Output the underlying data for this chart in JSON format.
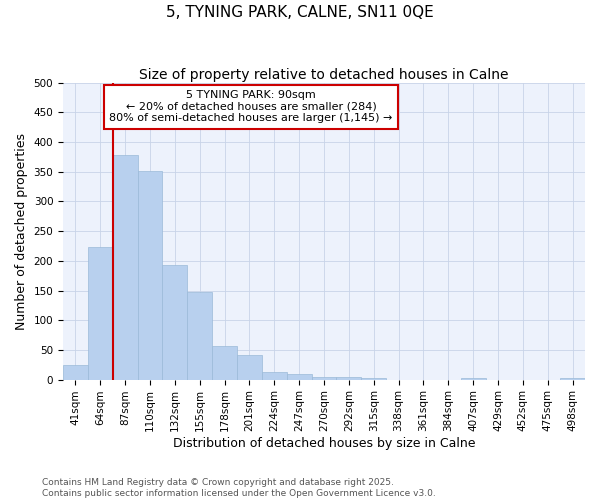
{
  "title": "5, TYNING PARK, CALNE, SN11 0QE",
  "subtitle": "Size of property relative to detached houses in Calne",
  "xlabel": "Distribution of detached houses by size in Calne",
  "ylabel": "Number of detached properties",
  "categories": [
    "41sqm",
    "64sqm",
    "87sqm",
    "110sqm",
    "132sqm",
    "155sqm",
    "178sqm",
    "201sqm",
    "224sqm",
    "247sqm",
    "270sqm",
    "292sqm",
    "315sqm",
    "338sqm",
    "361sqm",
    "384sqm",
    "407sqm",
    "429sqm",
    "452sqm",
    "475sqm",
    "498sqm"
  ],
  "values": [
    25,
    224,
    378,
    352,
    193,
    147,
    56,
    41,
    12,
    9,
    5,
    4,
    2,
    0,
    0,
    0,
    3,
    0,
    0,
    0,
    3
  ],
  "bar_color": "#b8d0ee",
  "bar_edge_color": "#9bbad8",
  "grid_color": "#c8d4e8",
  "background_color": "#edf2fc",
  "vline_x_index": 2,
  "vline_color": "#cc0000",
  "annotation_line1": "5 TYNING PARK: 90sqm",
  "annotation_line2": "← 20% of detached houses are smaller (284)",
  "annotation_line3": "80% of semi-detached houses are larger (1,145) →",
  "annotation_box_color": "#cc0000",
  "ylim": [
    0,
    500
  ],
  "yticks": [
    0,
    50,
    100,
    150,
    200,
    250,
    300,
    350,
    400,
    450,
    500
  ],
  "footer": "Contains HM Land Registry data © Crown copyright and database right 2025.\nContains public sector information licensed under the Open Government Licence v3.0.",
  "title_fontsize": 11,
  "subtitle_fontsize": 10,
  "axis_label_fontsize": 9,
  "tick_fontsize": 7.5,
  "annotation_fontsize": 8,
  "footer_fontsize": 6.5
}
